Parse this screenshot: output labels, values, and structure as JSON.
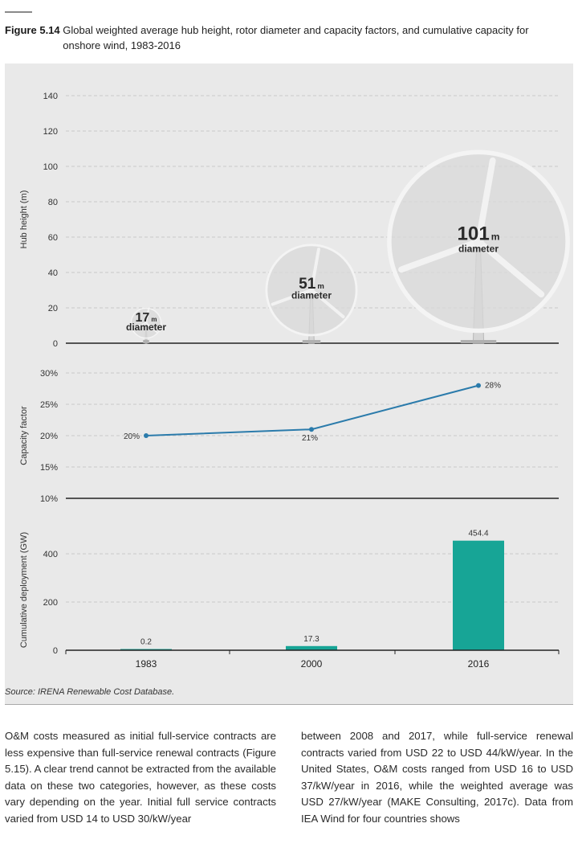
{
  "figure": {
    "label": "Figure 5.14",
    "title": "Global weighted average hub height, rotor diameter and capacity factors, and cumulative capacity for onshore wind, 1983-2016",
    "source": "Source: IRENA Renewable Cost Database."
  },
  "chart_data": [
    {
      "type": "scatter",
      "ylabel": "Hub height (m)",
      "ylim": [
        0,
        140
      ],
      "yticks": [
        0,
        20,
        40,
        60,
        80,
        100,
        120,
        140
      ],
      "categories": [
        "1983",
        "2000",
        "2016"
      ],
      "rotor_diameter": [
        17,
        51,
        101
      ],
      "diameter_unit": "m",
      "diameter_word": "diameter",
      "grid": true
    },
    {
      "type": "line",
      "ylabel": "Capacity factor",
      "ylim": [
        10,
        30
      ],
      "yticks": [
        "10%",
        "15%",
        "20%",
        "25%",
        "30%"
      ],
      "categories": [
        "1983",
        "2000",
        "2016"
      ],
      "values": [
        20,
        21,
        28
      ],
      "data_labels": [
        "20%",
        "21%",
        "28%"
      ],
      "color": "#2b7bab",
      "grid": true
    },
    {
      "type": "bar",
      "ylabel": "Cumulative deployment (GW)",
      "ylim": [
        0,
        480
      ],
      "yticks": [
        0,
        200,
        400
      ],
      "categories": [
        "1983",
        "2000",
        "2016"
      ],
      "values": [
        0.2,
        17.3,
        454.4
      ],
      "data_labels": [
        "0.2",
        "17.3",
        "454.4"
      ],
      "color": "#17a596",
      "grid": true
    }
  ],
  "body": {
    "col1": "O&M costs measured as initial full-service contracts are less expensive than full-service renewal contracts (Figure 5.15). A clear trend cannot be extracted from the available data on these two categories, however, as these costs vary depending on the year. Initial full service contracts varied from USD 14 to USD 30/kW/year",
    "col2": "between 2008 and 2017, while full-service renewal contracts varied from USD 22 to USD 44/kW/year. In the United States, O&M costs ranged from USD 16 to USD 37/kW/year in 2016, while the weighted average was USD 27/kW/year (MAKE Consulting, 2017c). Data from IEA Wind for four countries shows"
  }
}
